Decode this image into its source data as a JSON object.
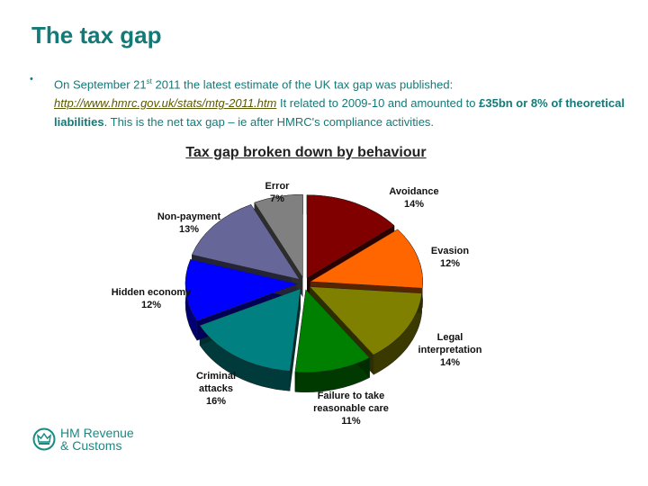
{
  "header": {
    "title": "The tax gap"
  },
  "body": {
    "bullet": "•",
    "text_1": "On September 21",
    "sup": "st",
    "text_2": " 2011 the latest estimate of the UK tax gap was published:",
    "link": "http://www.hmrc.gov.uk/stats/mtg-2011.htm",
    "text_3": "  It related to 2009-10 and amounted to ",
    "bold_1": "£35bn or 8% of theoretical liabilities",
    "text_4": ". This is the net tax gap – ie after HMRC's compliance activities."
  },
  "logo": {
    "line1": "HM Revenue",
    "line2": "& Customs"
  },
  "chart_data": {
    "type": "pie",
    "title": "Tax gap broken down by behaviour",
    "categories": [
      "Avoidance",
      "Evasion",
      "Legal interpretation",
      "Failure to take reasonable care",
      "Criminal attacks",
      "Hidden economy",
      "Non-payment",
      "Error"
    ],
    "values": [
      14,
      12,
      14,
      11,
      16,
      12,
      13,
      7
    ],
    "unit": "%",
    "colors": [
      "#800000",
      "#ff6600",
      "#808000",
      "#008000",
      "#008080",
      "#0000ff",
      "#666699",
      "#808080"
    ],
    "labels": [
      {
        "name": "Avoidance",
        "pct": "14%"
      },
      {
        "name": "Evasion",
        "pct": "12%"
      },
      {
        "name": "Legal interpretation",
        "pct": "14%"
      },
      {
        "name": "Failure to take reasonable care",
        "pct": "11%"
      },
      {
        "name": "Criminal attacks",
        "pct": "16%"
      },
      {
        "name": "Hidden economy",
        "pct": "12%"
      },
      {
        "name": "Non-payment",
        "pct": "13%"
      },
      {
        "name": "Error",
        "pct": "7%"
      }
    ]
  }
}
